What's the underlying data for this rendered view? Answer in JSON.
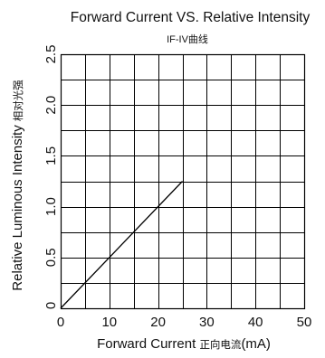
{
  "chart_data": {
    "type": "line",
    "title": "Forward Current VS. Relative Intensity",
    "subtitle": "IF-IV曲线",
    "xlabel": {
      "main": "Forward Current ",
      "cn": "正向电流",
      "unit": "(mA)"
    },
    "ylabel": {
      "main": "Relative Luminous Intensity",
      "cn": "相对光强"
    },
    "xlim": [
      0,
      50
    ],
    "ylim": [
      0,
      2.5
    ],
    "grid": true,
    "x_ticks": [
      0,
      10,
      20,
      30,
      40,
      50
    ],
    "x_tick_labels": [
      "0",
      "10",
      "20",
      "30",
      "40",
      "50"
    ],
    "y_ticks": [
      0,
      0.5,
      1.0,
      1.5,
      2.0,
      2.5
    ],
    "y_tick_labels": [
      "0",
      "0.5",
      "1.0",
      "1.5",
      "2.0",
      "2.5"
    ],
    "grid_x_step": 5,
    "grid_y_step": 0.25,
    "series": [
      {
        "x": [
          0,
          25
        ],
        "y": [
          0,
          1.25
        ]
      }
    ],
    "colors": {
      "grid": "#000000",
      "line": "#000000",
      "text": "#111111"
    }
  }
}
